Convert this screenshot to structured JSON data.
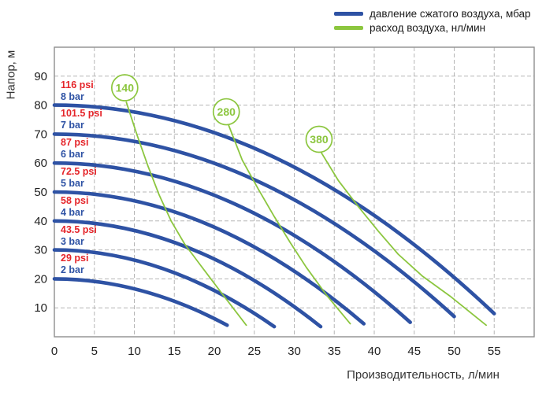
{
  "figure": {
    "y_axis_title": "Напор, м",
    "x_axis_title": "Производительность, л/мин"
  },
  "legend": {
    "items": [
      {
        "name": "pressure",
        "label": "давление сжатого воздуха, мбар",
        "color": "#2e52a4"
      },
      {
        "name": "air-flow",
        "label": "расход воздуха, нл/мин",
        "color": "#8cc63f"
      }
    ]
  },
  "chart_data": {
    "type": "line",
    "title": "",
    "xlabel": "Производительность, л/мин",
    "ylabel": "Напор, м",
    "xlim": [
      0,
      60
    ],
    "ylim": [
      0,
      100
    ],
    "x_ticks": [
      0,
      5,
      10,
      15,
      20,
      25,
      30,
      35,
      40,
      45,
      50,
      55
    ],
    "y_ticks": [
      10,
      20,
      30,
      40,
      50,
      60,
      70,
      80,
      90
    ],
    "grid": true,
    "legend_position": "top-right",
    "pressure_curves": [
      {
        "bar_label": "8 bar",
        "psi_label": "116 psi",
        "head_m": 80,
        "max_flow_l_min": 55,
        "end_head_m": 8,
        "points": [
          [
            0,
            80
          ],
          [
            10,
            77.6
          ],
          [
            20,
            70.5
          ],
          [
            30,
            58.6
          ],
          [
            40,
            41.9
          ],
          [
            50,
            20.5
          ],
          [
            55,
            8
          ]
        ]
      },
      {
        "bar_label": "7 bar",
        "psi_label": "101.5 psi",
        "head_m": 70,
        "max_flow_l_min": 50,
        "end_head_m": 7,
        "points": [
          [
            0,
            70
          ],
          [
            10,
            67.5
          ],
          [
            20,
            59.9
          ],
          [
            30,
            47.3
          ],
          [
            40,
            29.7
          ],
          [
            50,
            7
          ]
        ]
      },
      {
        "bar_label": "6 bar",
        "psi_label": "87 psi",
        "head_m": 60,
        "max_flow_l_min": 44.5,
        "end_head_m": 5,
        "points": [
          [
            0,
            60
          ],
          [
            10,
            57.2
          ],
          [
            20,
            48.9
          ],
          [
            30,
            35
          ],
          [
            40,
            15.6
          ],
          [
            44.5,
            5
          ]
        ]
      },
      {
        "bar_label": "5 bar",
        "psi_label": "72.5 psi",
        "head_m": 50,
        "max_flow_l_min": 38.7,
        "end_head_m": 4.5,
        "points": [
          [
            0,
            50
          ],
          [
            10,
            47
          ],
          [
            20,
            37.8
          ],
          [
            30,
            22.7
          ],
          [
            38.7,
            4.5
          ]
        ]
      },
      {
        "bar_label": "4 bar",
        "psi_label": "58 psi",
        "head_m": 40,
        "max_flow_l_min": 33.3,
        "end_head_m": 3.5,
        "points": [
          [
            0,
            40
          ],
          [
            10,
            36.7
          ],
          [
            20,
            26.8
          ],
          [
            30,
            10.4
          ],
          [
            33.3,
            3.5
          ]
        ]
      },
      {
        "bar_label": "3 bar",
        "psi_label": "43.5 psi",
        "head_m": 30,
        "max_flow_l_min": 27.5,
        "end_head_m": 3.5,
        "points": [
          [
            0,
            30
          ],
          [
            10,
            26.5
          ],
          [
            20,
            16
          ],
          [
            27.5,
            3.5
          ]
        ]
      },
      {
        "bar_label": "2 bar",
        "psi_label": "29 psi",
        "head_m": 20,
        "max_flow_l_min": 21.6,
        "end_head_m": 4,
        "points": [
          [
            0,
            20
          ],
          [
            10,
            16.6
          ],
          [
            20,
            6.3
          ],
          [
            21.6,
            4
          ]
        ]
      }
    ],
    "air_flow_lines": [
      {
        "label": "140",
        "circle_at": {
          "x": 8.8,
          "y": 86
        },
        "points": [
          [
            9,
            81
          ],
          [
            10.3,
            70
          ],
          [
            11.7,
            59
          ],
          [
            13.1,
            49
          ],
          [
            14.6,
            40
          ],
          [
            16.3,
            32
          ],
          [
            18.2,
            25
          ],
          [
            20.8,
            15.5
          ],
          [
            24,
            4
          ]
        ]
      },
      {
        "label": "280",
        "circle_at": {
          "x": 21.5,
          "y": 77.7
        },
        "points": [
          [
            21.8,
            73
          ],
          [
            23.5,
            61
          ],
          [
            25.5,
            51
          ],
          [
            27.5,
            41.5
          ],
          [
            29.5,
            32.5
          ],
          [
            31.5,
            24
          ],
          [
            34,
            14.5
          ],
          [
            37,
            4.5
          ]
        ]
      },
      {
        "label": "380",
        "circle_at": {
          "x": 33.1,
          "y": 68.2
        },
        "points": [
          [
            33.4,
            63.5
          ],
          [
            35.5,
            54
          ],
          [
            38,
            45
          ],
          [
            40.5,
            36.5
          ],
          [
            43,
            28.5
          ],
          [
            46,
            21
          ],
          [
            49.5,
            14
          ],
          [
            54,
            4
          ]
        ]
      }
    ],
    "colors": {
      "pressure_line": "#2e52a4",
      "air_line": "#8cc63f",
      "psi_text": "#e5252a",
      "bar_text": "#2e52a4",
      "grid": "#b5b5b5",
      "border": "#8f8f8f",
      "tick_text": "#1f1f1f"
    }
  }
}
